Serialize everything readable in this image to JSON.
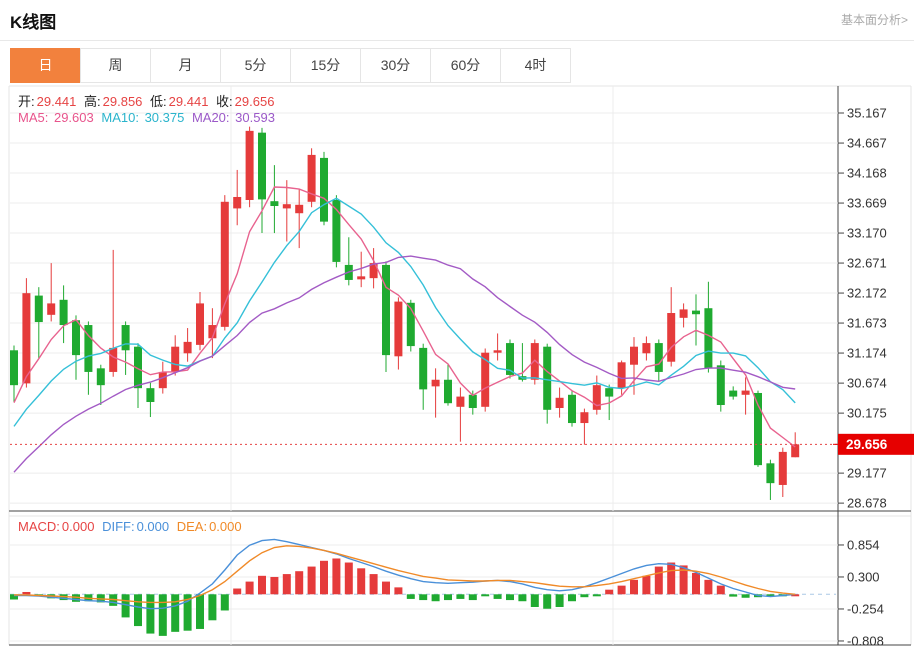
{
  "header": {
    "title": "K线图",
    "link": "基本面分析>"
  },
  "tabs": {
    "items": [
      "日",
      "周",
      "月",
      "5分",
      "15分",
      "30分",
      "60分",
      "4时"
    ],
    "active_index": 0
  },
  "info_bar": {
    "o_label": "开:",
    "o": "29.441",
    "h_label": "高:",
    "h": "29.856",
    "l_label": "低:",
    "l": "29.441",
    "c_label": "收:",
    "c": "29.656"
  },
  "ma_bar": {
    "ma5_label": "MA5:",
    "ma5": "29.603",
    "ma10_label": "MA10:",
    "ma10": "30.375",
    "ma20_label": "MA20:",
    "ma20": "30.593"
  },
  "macd_bar": {
    "macd_label": "MACD:",
    "macd": "0.000",
    "diff_label": "DIFF:",
    "diff": "0.000",
    "dea_label": "DEA:",
    "dea": "0.000"
  },
  "price_axis": {
    "tick_values": [
      35.167,
      34.667,
      34.168,
      33.669,
      33.17,
      32.671,
      32.172,
      31.673,
      31.174,
      30.674,
      30.175,
      29.177,
      28.678
    ],
    "current": "29.656",
    "current_value": 29.656
  },
  "macd_axis": {
    "tick_values": [
      0.854,
      0.3,
      -0.254,
      -0.808
    ]
  },
  "colors": {
    "up": "#e53b3b",
    "down": "#1faa30",
    "ma5": "#e8638f",
    "ma10": "#35c0d8",
    "ma20": "#a35bc5",
    "diff": "#4a90d9",
    "dea": "#f08a28",
    "badge": "#e60000",
    "dotted": "#e64444",
    "grid": "#ececec",
    "axis": "#444444",
    "frame": "#e4e4e4",
    "tab_active": "#f2813d",
    "zero_dash": "#aac8e6"
  },
  "chart_data": [
    {
      "type": "candlestick",
      "title": "K线图 日K",
      "legend": [
        "MA5",
        "MA10",
        "MA20"
      ],
      "y_axis": {
        "top": 35.167,
        "step": 0.499,
        "grid": true
      },
      "current_price": 29.656,
      "ohlc": [
        [
          31.22,
          31.3,
          30.36,
          30.64
        ],
        [
          30.67,
          32.42,
          30.6,
          32.17
        ],
        [
          32.13,
          32.27,
          31.09,
          31.69
        ],
        [
          31.81,
          32.67,
          31.7,
          32.0
        ],
        [
          32.06,
          32.3,
          31.34,
          31.64
        ],
        [
          31.72,
          31.8,
          30.73,
          31.14
        ],
        [
          31.64,
          31.7,
          30.48,
          30.86
        ],
        [
          30.92,
          30.98,
          30.31,
          30.64
        ],
        [
          30.86,
          32.89,
          30.78,
          31.26
        ],
        [
          31.64,
          31.7,
          30.81,
          31.22
        ],
        [
          31.28,
          31.34,
          30.26,
          30.59
        ],
        [
          30.59,
          30.68,
          30.11,
          30.36
        ],
        [
          30.59,
          31.03,
          30.5,
          30.86
        ],
        [
          30.86,
          31.47,
          30.8,
          31.28
        ],
        [
          31.17,
          31.59,
          31.03,
          31.36
        ],
        [
          31.31,
          32.19,
          31.22,
          32.0
        ],
        [
          31.42,
          31.92,
          31.09,
          31.64
        ],
        [
          31.61,
          33.8,
          31.55,
          33.69
        ],
        [
          33.58,
          34.22,
          33.3,
          33.77
        ],
        [
          33.72,
          34.94,
          33.6,
          34.87
        ],
        [
          34.84,
          34.92,
          33.17,
          33.73
        ],
        [
          33.7,
          34.3,
          33.17,
          33.62
        ],
        [
          33.58,
          34.05,
          33.03,
          33.65
        ],
        [
          33.5,
          33.9,
          32.92,
          33.64
        ],
        [
          33.69,
          34.58,
          33.6,
          34.47
        ],
        [
          34.42,
          34.52,
          33.3,
          33.36
        ],
        [
          33.72,
          33.8,
          32.6,
          32.69
        ],
        [
          32.64,
          33.1,
          32.3,
          32.39
        ],
        [
          32.4,
          32.86,
          32.27,
          32.45
        ],
        [
          32.42,
          32.92,
          32.25,
          32.67
        ],
        [
          32.64,
          32.7,
          30.86,
          31.14
        ],
        [
          31.12,
          32.1,
          30.9,
          32.03
        ],
        [
          32.01,
          32.06,
          31.2,
          31.29
        ],
        [
          31.26,
          31.33,
          30.23,
          30.57
        ],
        [
          30.62,
          30.92,
          30.1,
          30.73
        ],
        [
          30.73,
          31.0,
          30.3,
          30.34
        ],
        [
          30.28,
          30.6,
          29.7,
          30.45
        ],
        [
          30.48,
          30.55,
          30.15,
          30.26
        ],
        [
          30.28,
          31.25,
          30.2,
          31.18
        ],
        [
          31.18,
          31.5,
          31.05,
          31.22
        ],
        [
          31.34,
          31.4,
          30.75,
          30.81
        ],
        [
          30.79,
          31.34,
          30.7,
          30.73
        ],
        [
          30.73,
          31.4,
          30.65,
          31.34
        ],
        [
          31.28,
          31.33,
          30.0,
          30.23
        ],
        [
          30.26,
          30.6,
          30.1,
          30.43
        ],
        [
          30.48,
          30.55,
          29.95,
          30.01
        ],
        [
          30.01,
          30.25,
          29.65,
          30.19
        ],
        [
          30.23,
          30.8,
          30.15,
          30.64
        ],
        [
          30.59,
          30.65,
          30.06,
          30.45
        ],
        [
          30.59,
          31.05,
          30.48,
          31.02
        ],
        [
          30.98,
          31.44,
          30.48,
          31.28
        ],
        [
          31.17,
          31.45,
          31.05,
          31.34
        ],
        [
          31.34,
          31.4,
          30.7,
          30.86
        ],
        [
          31.03,
          32.27,
          30.95,
          31.84
        ],
        [
          31.76,
          32.0,
          31.6,
          31.9
        ],
        [
          31.88,
          32.15,
          31.3,
          31.82
        ],
        [
          31.92,
          32.36,
          30.85,
          30.92
        ],
        [
          30.97,
          31.05,
          30.2,
          30.31
        ],
        [
          30.55,
          30.62,
          30.4,
          30.45
        ],
        [
          30.48,
          30.77,
          30.15,
          30.55
        ],
        [
          30.51,
          30.55,
          29.28,
          29.31
        ],
        [
          29.34,
          29.4,
          28.73,
          29.01
        ],
        [
          28.98,
          29.6,
          28.78,
          29.53
        ],
        [
          29.441,
          29.856,
          29.441,
          29.656
        ]
      ],
      "ma_seed_closes": [
        27.6,
        27.8,
        28.0,
        28.2,
        28.4,
        28.5,
        28.7,
        28.9,
        29.0,
        29.2,
        29.3,
        29.4,
        29.6,
        29.7,
        29.8,
        30.0,
        30.2,
        30.4,
        30.5
      ]
    },
    {
      "type": "bar",
      "title": "MACD",
      "legend": [
        "MACD",
        "DIFF",
        "DEA"
      ],
      "y_axis": {
        "ticks": [
          0.854,
          0.3,
          -0.254,
          -0.808
        ],
        "zero_line": "dashed"
      },
      "histogram": [
        -0.09,
        0.04,
        -0.03,
        -0.07,
        -0.1,
        -0.13,
        -0.12,
        -0.14,
        -0.2,
        -0.4,
        -0.55,
        -0.68,
        -0.72,
        -0.65,
        -0.63,
        -0.6,
        -0.45,
        -0.28,
        0.1,
        0.22,
        0.32,
        0.3,
        0.35,
        0.4,
        0.48,
        0.58,
        0.62,
        0.55,
        0.45,
        0.35,
        0.22,
        0.12,
        -0.08,
        -0.1,
        -0.12,
        -0.1,
        -0.08,
        -0.1,
        -0.03,
        -0.08,
        -0.1,
        -0.12,
        -0.22,
        -0.25,
        -0.22,
        -0.12,
        -0.05,
        -0.02,
        0.08,
        0.15,
        0.25,
        0.32,
        0.48,
        0.55,
        0.5,
        0.37,
        0.25,
        0.15,
        -0.04,
        -0.06,
        -0.05,
        -0.02,
        -0.01,
        0.0
      ],
      "diff": [
        -0.02,
        -0.02,
        -0.03,
        -0.05,
        -0.07,
        -0.09,
        -0.11,
        -0.12,
        -0.14,
        -0.18,
        -0.22,
        -0.25,
        -0.24,
        -0.2,
        -0.12,
        0.02,
        0.18,
        0.42,
        0.68,
        0.85,
        0.93,
        0.95,
        0.91,
        0.86,
        0.81,
        0.76,
        0.7,
        0.62,
        0.55,
        0.48,
        0.4,
        0.33,
        0.27,
        0.22,
        0.2,
        0.19,
        0.2,
        0.21,
        0.23,
        0.24,
        0.22,
        0.18,
        0.12,
        0.08,
        0.06,
        0.08,
        0.13,
        0.2,
        0.28,
        0.36,
        0.44,
        0.5,
        0.53,
        0.52,
        0.46,
        0.38,
        0.28,
        0.18,
        0.1,
        0.04,
        -0.02,
        -0.04,
        -0.02,
        0.0
      ],
      "dea": [
        -0.01,
        -0.01,
        -0.02,
        -0.03,
        -0.04,
        -0.05,
        -0.07,
        -0.08,
        -0.09,
        -0.11,
        -0.13,
        -0.14,
        -0.14,
        -0.13,
        -0.09,
        -0.02,
        0.08,
        0.22,
        0.4,
        0.58,
        0.72,
        0.81,
        0.84,
        0.83,
        0.8,
        0.76,
        0.71,
        0.65,
        0.59,
        0.53,
        0.47,
        0.41,
        0.36,
        0.31,
        0.28,
        0.25,
        0.24,
        0.23,
        0.23,
        0.24,
        0.24,
        0.22,
        0.2,
        0.17,
        0.14,
        0.13,
        0.13,
        0.15,
        0.18,
        0.22,
        0.27,
        0.32,
        0.37,
        0.41,
        0.42,
        0.4,
        0.36,
        0.3,
        0.23,
        0.16,
        0.1,
        0.05,
        0.02,
        0.0
      ]
    }
  ]
}
